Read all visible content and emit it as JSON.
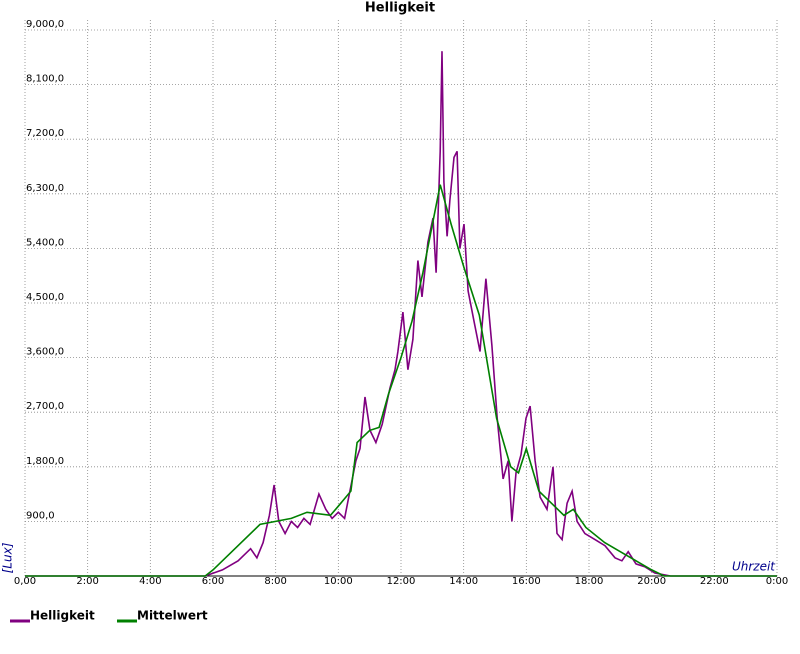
{
  "chart_data": {
    "type": "line",
    "title": "Helligkeit",
    "x_label": "Uhrzeit",
    "y_label": "[Lux]",
    "xlim": [
      0,
      24
    ],
    "ylim": [
      0,
      9000
    ],
    "xticks": [
      {
        "value": 0,
        "label": "0,00"
      },
      {
        "value": 2,
        "label": "2:00"
      },
      {
        "value": 4,
        "label": "4:00"
      },
      {
        "value": 6,
        "label": "6:00"
      },
      {
        "value": 8,
        "label": "8:00"
      },
      {
        "value": 10,
        "label": "10:00"
      },
      {
        "value": 12,
        "label": "12:00"
      },
      {
        "value": 14,
        "label": "14:00"
      },
      {
        "value": 16,
        "label": "16:00"
      },
      {
        "value": 18,
        "label": "18:00"
      },
      {
        "value": 20,
        "label": "20:00"
      },
      {
        "value": 22,
        "label": "22:00"
      },
      {
        "value": 24,
        "label": "0:00"
      }
    ],
    "yticks": [
      {
        "value": 900,
        "label": "900,0"
      },
      {
        "value": 1800,
        "label": "1,800,0"
      },
      {
        "value": 2700,
        "label": "2,700,0"
      },
      {
        "value": 3600,
        "label": "3,600,0"
      },
      {
        "value": 4500,
        "label": "4,500,0"
      },
      {
        "value": 5400,
        "label": "5,400,0"
      },
      {
        "value": 6300,
        "label": "6,300,0"
      },
      {
        "value": 7200,
        "label": "7,200,0"
      },
      {
        "value": 8100,
        "label": "8,100,0"
      },
      {
        "value": 9000,
        "label": "9,000,0"
      }
    ],
    "grid": true,
    "legend": "bottom-left",
    "series": [
      {
        "name": "Helligkeit",
        "color": "#800080",
        "x": [
          0,
          5.75,
          6.3,
          6.8,
          7.2,
          7.4,
          7.6,
          7.8,
          7.95,
          8.1,
          8.3,
          8.5,
          8.7,
          8.9,
          9.1,
          9.38,
          9.6,
          9.8,
          10.0,
          10.2,
          10.37,
          10.56,
          10.69,
          10.85,
          11.01,
          11.2,
          11.4,
          11.65,
          11.81,
          11.9,
          12.06,
          12.22,
          12.38,
          12.54,
          12.67,
          12.86,
          13.02,
          13.12,
          13.25,
          13.31,
          13.37,
          13.47,
          13.56,
          13.69,
          13.79,
          13.88,
          14.01,
          14.14,
          14.33,
          14.52,
          14.71,
          14.9,
          15.07,
          15.26,
          15.42,
          15.54,
          15.67,
          15.83,
          15.99,
          16.12,
          16.28,
          16.44,
          16.66,
          16.85,
          16.98,
          17.14,
          17.3,
          17.46,
          17.62,
          17.87,
          18.19,
          18.51,
          18.83,
          19.05,
          19.25,
          19.5,
          19.79,
          20.1,
          20.6,
          24
        ],
        "values": [
          0,
          0,
          100,
          250,
          450,
          300,
          550,
          1000,
          1500,
          900,
          700,
          900,
          800,
          950,
          850,
          1350,
          1100,
          950,
          1050,
          950,
          1400,
          1900,
          2100,
          2950,
          2400,
          2200,
          2500,
          3100,
          3400,
          3700,
          4350,
          3400,
          3900,
          5200,
          4600,
          5500,
          5900,
          5000,
          7000,
          8650,
          6500,
          5600,
          6200,
          6900,
          7000,
          5400,
          5800,
          4700,
          4200,
          3700,
          4900,
          3800,
          2600,
          1600,
          1900,
          900,
          1700,
          2000,
          2600,
          2800,
          1900,
          1300,
          1100,
          1800,
          700,
          600,
          1200,
          1400,
          900,
          700,
          600,
          500,
          300,
          250,
          400,
          200,
          150,
          50,
          0,
          0
        ]
      },
      {
        "name": "Mittelwert",
        "color": "#008000",
        "x": [
          0,
          5.75,
          6.0,
          7.5,
          8.5,
          9.0,
          9.75,
          10.0,
          10.4,
          10.6,
          11.0,
          11.3,
          11.6,
          12.0,
          12.35,
          12.7,
          13.25,
          13.6,
          14.0,
          14.5,
          15.05,
          15.5,
          15.75,
          16.0,
          16.4,
          16.8,
          17.2,
          17.5,
          17.9,
          18.5,
          19.0,
          19.5,
          20.0,
          20.4,
          24
        ],
        "values": [
          0,
          0,
          100,
          850,
          950,
          1050,
          1000,
          1150,
          1400,
          2200,
          2400,
          2450,
          3000,
          3600,
          4200,
          5000,
          6450,
          5800,
          5100,
          4300,
          2600,
          1800,
          1700,
          2100,
          1400,
          1200,
          1000,
          1100,
          800,
          550,
          400,
          250,
          100,
          0,
          0
        ]
      }
    ]
  }
}
